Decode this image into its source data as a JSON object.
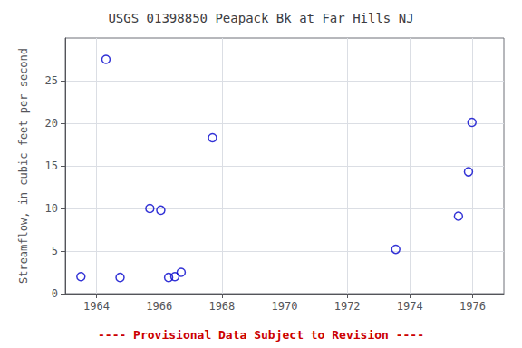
{
  "chart_data": {
    "type": "scatter",
    "title": "USGS 01398850 Peapack Bk at Far Hills NJ",
    "ylabel": "Streamflow, in cubic feet per second",
    "x": [
      1963.5,
      1964.3,
      1964.75,
      1965.7,
      1966.05,
      1966.3,
      1966.5,
      1966.7,
      1967.7,
      1973.55,
      1975.55,
      1975.87,
      1975.98
    ],
    "values": [
      2.0,
      27.5,
      1.9,
      10.0,
      9.8,
      1.9,
      2.0,
      2.5,
      18.3,
      5.2,
      9.1,
      14.3,
      20.1
    ],
    "color": "#0000cc",
    "marker": "circle",
    "xlim": [
      1963,
      1977
    ],
    "ylim": [
      0,
      30
    ],
    "xticks": [
      1964,
      1966,
      1968,
      1970,
      1972,
      1974,
      1976
    ],
    "yticks": [
      0,
      5,
      10,
      15,
      20,
      25
    ],
    "grid": true,
    "annotations": [
      {
        "text": "---- Provisional Data Subject to Revision ----",
        "color": "#cc0000"
      }
    ]
  }
}
